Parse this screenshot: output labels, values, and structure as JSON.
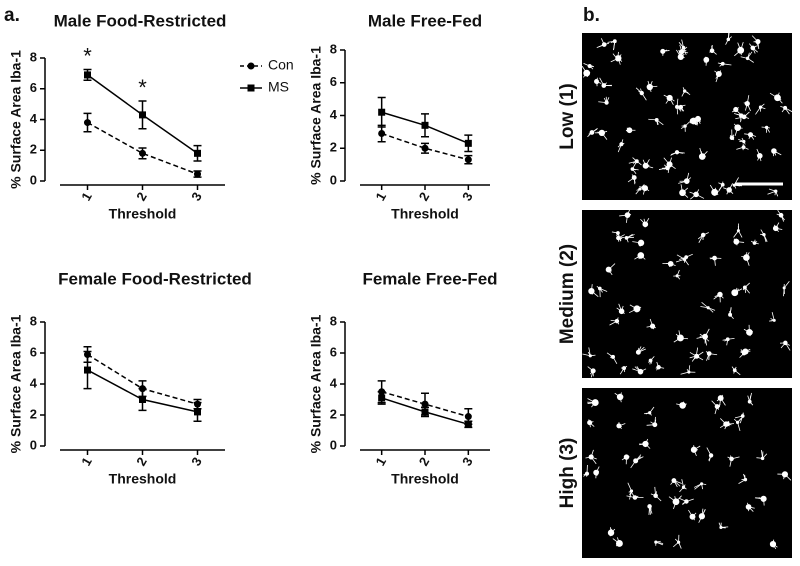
{
  "panel_labels": [
    "a.",
    "b."
  ],
  "images": [
    {
      "label": "Low (1)"
    },
    {
      "label": "Medium (2)"
    },
    {
      "label": "High (3)"
    }
  ],
  "chart_data": [
    {
      "type": "line",
      "title": "Male Food-Restricted",
      "x_label": "Threshold",
      "y_label": "% Surface Area Iba-1",
      "categories": [
        "1",
        "2",
        "3"
      ],
      "ylim": [
        0,
        8
      ],
      "yticks": [
        0,
        2,
        4,
        6,
        8
      ],
      "legend": true,
      "annotations": [
        "*",
        "*"
      ],
      "series": [
        {
          "name": "Con",
          "color": "#000000",
          "line_style": "dashed",
          "marker": "circle",
          "values": [
            3.8,
            1.8,
            0.45
          ],
          "errors": [
            0.6,
            0.35,
            0.2
          ]
        },
        {
          "name": "MS",
          "color": "#000000",
          "line_style": "solid",
          "marker": "square",
          "values": [
            6.9,
            4.3,
            1.8
          ],
          "errors": [
            0.35,
            0.9,
            0.5
          ]
        }
      ]
    },
    {
      "type": "line",
      "title": "Male Free-Fed",
      "x_label": "Threshold",
      "y_label": "% Surface Area Iba-1",
      "categories": [
        "1",
        "2",
        "3"
      ],
      "ylim": [
        0,
        8
      ],
      "yticks": [
        0,
        2,
        4,
        6,
        8
      ],
      "legend": false,
      "series": [
        {
          "name": "Con",
          "color": "#000000",
          "line_style": "dashed",
          "marker": "circle",
          "values": [
            2.9,
            2.0,
            1.3
          ],
          "errors": [
            0.5,
            0.3,
            0.25
          ]
        },
        {
          "name": "MS",
          "color": "#000000",
          "line_style": "solid",
          "marker": "square",
          "values": [
            4.2,
            3.4,
            2.3
          ],
          "errors": [
            0.9,
            0.7,
            0.5
          ]
        }
      ]
    },
    {
      "type": "line",
      "title": "Female Food-Restricted",
      "x_label": "Threshold",
      "y_label": "% Surface Area Iba-1",
      "categories": [
        "1",
        "2",
        "3"
      ],
      "ylim": [
        0,
        8
      ],
      "yticks": [
        0,
        2,
        4,
        6,
        8
      ],
      "legend": false,
      "series": [
        {
          "name": "Con",
          "color": "#000000",
          "line_style": "dashed",
          "marker": "circle",
          "values": [
            5.9,
            3.7,
            2.7
          ],
          "errors": [
            0.5,
            0.5,
            0.3
          ]
        },
        {
          "name": "MS",
          "color": "#000000",
          "line_style": "solid",
          "marker": "square",
          "values": [
            4.9,
            3.0,
            2.2
          ],
          "errors": [
            1.2,
            0.7,
            0.6
          ]
        }
      ]
    },
    {
      "type": "line",
      "title": "Female Free-Fed",
      "x_label": "Threshold",
      "y_label": "% Surface Area Iba-1",
      "categories": [
        "1",
        "2",
        "3"
      ],
      "ylim": [
        0,
        8
      ],
      "yticks": [
        0,
        2,
        4,
        6,
        8
      ],
      "legend": false,
      "series": [
        {
          "name": "Con",
          "color": "#000000",
          "line_style": "dashed",
          "marker": "circle",
          "values": [
            3.5,
            2.7,
            1.9
          ],
          "errors": [
            0.7,
            0.7,
            0.5
          ]
        },
        {
          "name": "MS",
          "color": "#000000",
          "line_style": "solid",
          "marker": "square",
          "values": [
            3.1,
            2.2,
            1.4
          ],
          "errors": [
            0.4,
            0.3,
            0.2
          ]
        }
      ]
    }
  ]
}
